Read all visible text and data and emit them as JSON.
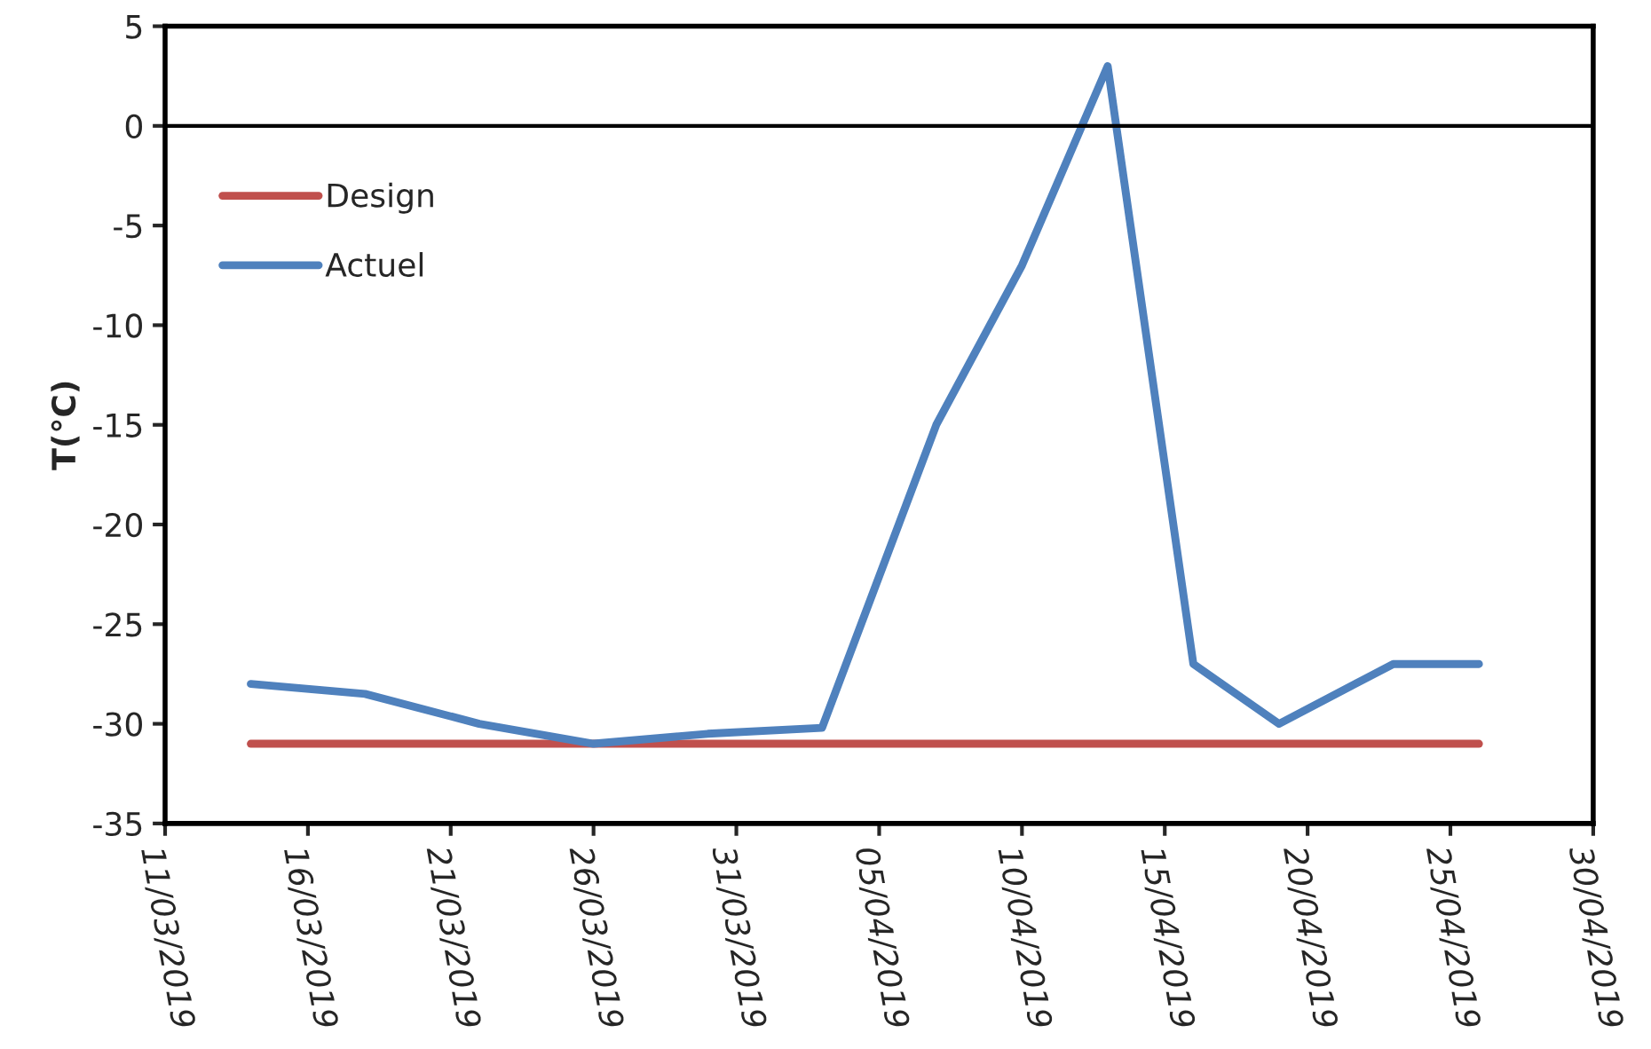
{
  "chart_data": {
    "type": "line",
    "ylabel": "T(°C)",
    "xlim": [
      "2019-03-11",
      "2019-04-30"
    ],
    "xticks": [
      {
        "value": "2019-03-11",
        "label": "11/03/2019"
      },
      {
        "value": "2019-03-16",
        "label": "16/03/2019"
      },
      {
        "value": "2019-03-21",
        "label": "21/03/2019"
      },
      {
        "value": "2019-03-26",
        "label": "26/03/2019"
      },
      {
        "value": "2019-03-31",
        "label": "31/03/2019"
      },
      {
        "value": "2019-04-05",
        "label": "05/04/2019"
      },
      {
        "value": "2019-04-10",
        "label": "10/04/2019"
      },
      {
        "value": "2019-04-15",
        "label": "15/04/2019"
      },
      {
        "value": "2019-04-20",
        "label": "20/04/2019"
      },
      {
        "value": "2019-04-25",
        "label": "25/04/2019"
      },
      {
        "value": "2019-04-30",
        "label": "30/04/2019"
      }
    ],
    "ylim": [
      -35,
      5
    ],
    "yticks": [
      -35,
      -30,
      -25,
      -20,
      -15,
      -10,
      -5,
      0,
      5
    ],
    "grid": false,
    "legend": "top left",
    "marker": "none",
    "line_style": "solid",
    "ref_lines": [
      {
        "axis": "y",
        "value": 0,
        "color": "#000000"
      }
    ],
    "series": [
      {
        "name": "Design",
        "color": "#c0504d",
        "x": [
          "2019-03-14",
          "2019-04-26"
        ],
        "values": [
          -31,
          -31
        ]
      },
      {
        "name": "Actuel",
        "color": "#4f81bd",
        "x": [
          "2019-03-14",
          "2019-03-18",
          "2019-03-22",
          "2019-03-26",
          "2019-03-30",
          "2019-04-03",
          "2019-04-07",
          "2019-04-10",
          "2019-04-13",
          "2019-04-16",
          "2019-04-19",
          "2019-04-23",
          "2019-04-26"
        ],
        "values": [
          -28,
          -28.5,
          -30,
          -31,
          -30.5,
          -30.2,
          -15,
          -7,
          3,
          -27,
          -30,
          -27,
          -27
        ]
      }
    ]
  }
}
